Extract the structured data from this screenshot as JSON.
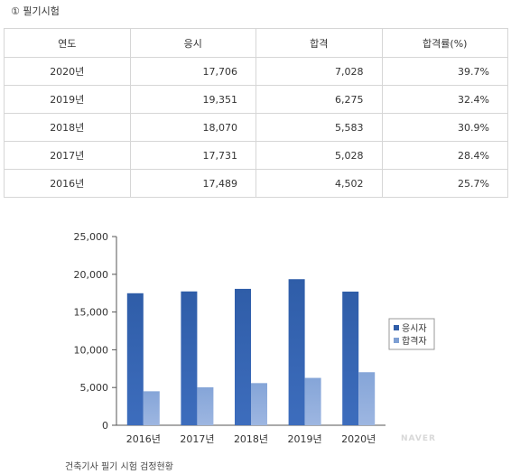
{
  "section": {
    "title": "① 필기시험"
  },
  "table": {
    "headers": [
      "연도",
      "응시",
      "합격",
      "합격률(%)"
    ],
    "rows": [
      [
        "2020년",
        "17,706",
        "7,028",
        "39.7%"
      ],
      [
        "2019년",
        "19,351",
        "6,275",
        "32.4%"
      ],
      [
        "2018년",
        "18,070",
        "5,583",
        "30.9%"
      ],
      [
        "2017년",
        "17,731",
        "5,028",
        "28.4%"
      ],
      [
        "2016년",
        "17,489",
        "4,502",
        "25.7%"
      ]
    ]
  },
  "chart_data": {
    "type": "bar",
    "categories": [
      "2016년",
      "2017년",
      "2018년",
      "2019년",
      "2020년"
    ],
    "series": [
      {
        "name": "응시자",
        "values": [
          17489,
          17731,
          18070,
          19351,
          17706
        ],
        "color": "#2f5da8"
      },
      {
        "name": "합격자",
        "values": [
          4502,
          5028,
          5583,
          6275,
          7028
        ],
        "color": "#7e9fd3"
      }
    ],
    "yticks": [
      "0",
      "5,000",
      "10,000",
      "15,000",
      "20,000",
      "25,000"
    ],
    "ylim": [
      0,
      25000
    ],
    "grid": false,
    "legend_position": "right"
  },
  "watermark": "NAVER",
  "caption": "건축기사 필기 시험 검정현황"
}
